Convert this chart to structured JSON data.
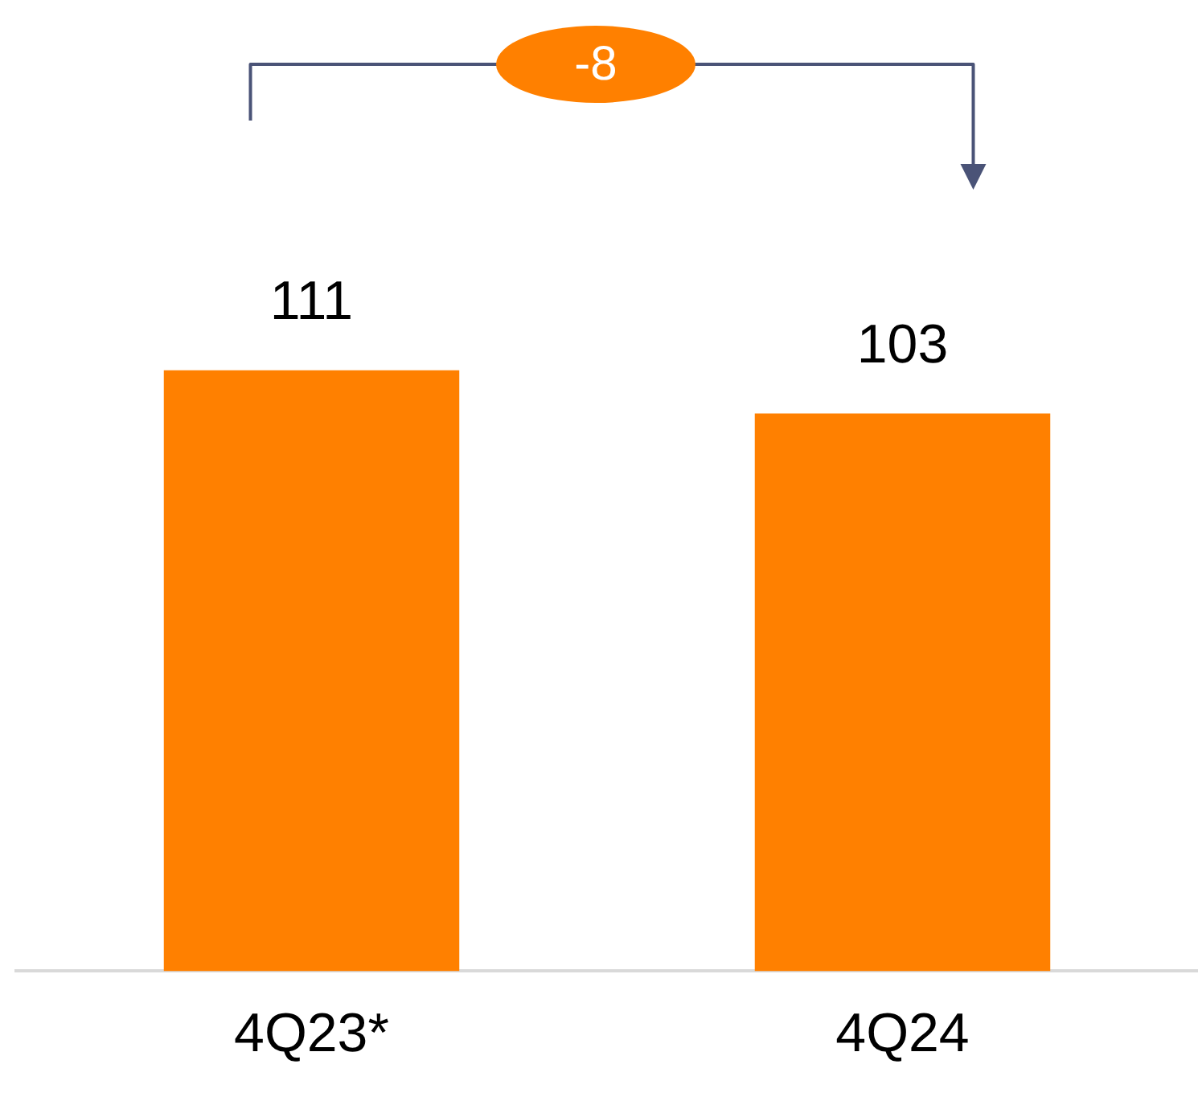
{
  "chart_data": {
    "type": "bar",
    "categories": [
      "4Q23*",
      "4Q24"
    ],
    "values": [
      111,
      103
    ],
    "color": "#ff8000",
    "data_labels": true,
    "legend": false,
    "grid": false,
    "annotations": [
      "-8"
    ]
  }
}
